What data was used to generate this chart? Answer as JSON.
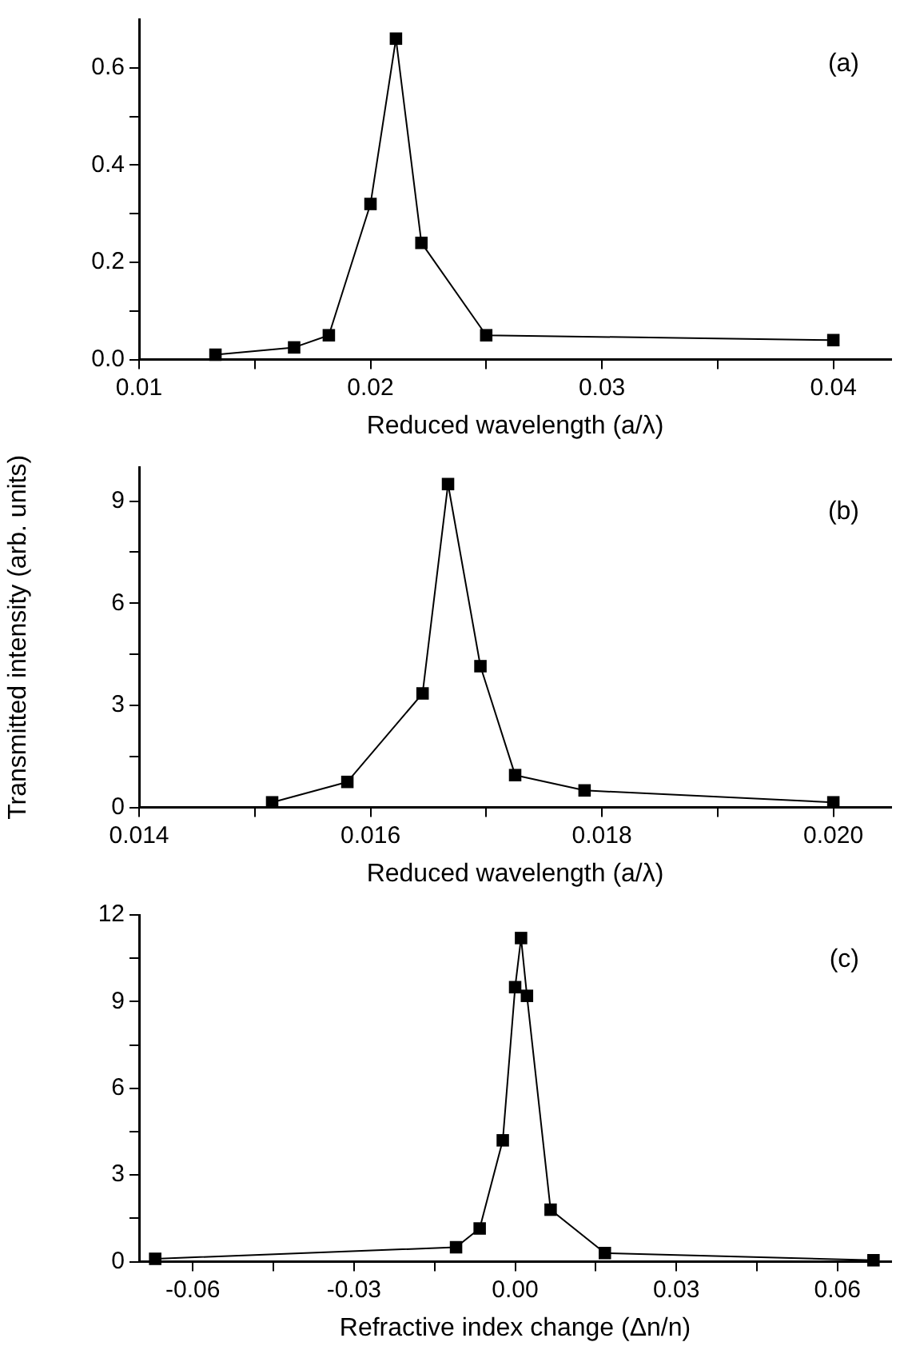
{
  "chart_data": [
    {
      "type": "line",
      "xlabel": "Reduced wavelength (a/λ)",
      "annotations": [
        "(a)"
      ],
      "marker": "square",
      "line_style": "solid",
      "grid": false,
      "legend": false,
      "x": [
        0.0133,
        0.0167,
        0.0182,
        0.02,
        0.0211,
        0.0222,
        0.025,
        0.04
      ],
      "series": [
        {
          "color": "#000000",
          "values": [
            0.01,
            0.025,
            0.05,
            0.32,
            0.66,
            0.24,
            0.05,
            0.04
          ]
        }
      ],
      "xlim": [
        0.01,
        0.0425
      ],
      "xticks": [
        0.01,
        {
          "value": 0.015,
          "label": null
        },
        0.02,
        {
          "value": 0.025,
          "label": null
        },
        0.03,
        {
          "value": 0.035,
          "label": null
        },
        0.04
      ],
      "ylim": [
        0,
        0.7
      ],
      "yticks": [
        {
          "value": 0,
          "label": "0.0"
        },
        {
          "value": 0.1,
          "label": null
        },
        0.2,
        {
          "value": 0.3,
          "label": null
        },
        0.4,
        {
          "value": 0.5,
          "label": null
        },
        0.6
      ]
    },
    {
      "type": "line",
      "xlabel": "Reduced wavelength (a/λ)",
      "ylabel": "Transmitted intensity (arb. units)",
      "annotations": [
        "(b)"
      ],
      "marker": "square",
      "line_style": "solid",
      "grid": false,
      "legend": false,
      "x": [
        0.01515,
        0.0158,
        0.01645,
        0.01667,
        0.01695,
        0.01725,
        0.01785,
        0.02
      ],
      "series": [
        {
          "color": "#000000",
          "values": [
            0.15,
            0.75,
            3.35,
            9.5,
            4.15,
            0.95,
            0.5,
            0.15
          ]
        }
      ],
      "xlim": [
        0.014,
        0.0205
      ],
      "xticks": [
        0.014,
        {
          "value": 0.015,
          "label": null
        },
        0.016,
        {
          "value": 0.017,
          "label": null
        },
        0.018,
        {
          "value": 0.019,
          "label": null
        },
        {
          "value": 0.02,
          "label": "0.020"
        }
      ],
      "ylim": [
        0,
        10
      ],
      "yticks": [
        0,
        {
          "value": 1.5,
          "label": null
        },
        3,
        {
          "value": 4.5,
          "label": null
        },
        6,
        {
          "value": 7.5,
          "label": null
        },
        9
      ]
    },
    {
      "type": "line",
      "xlabel": "Refractive index change (Δn/n)",
      "annotations": [
        "(c)"
      ],
      "marker": "square",
      "line_style": "solid",
      "grid": false,
      "legend": false,
      "x": [
        -0.067,
        -0.011,
        -0.0066,
        -0.0023,
        0.0,
        0.0011,
        0.0022,
        0.0066,
        0.0167,
        0.0667
      ],
      "series": [
        {
          "color": "#000000",
          "values": [
            0.1,
            0.5,
            1.15,
            4.2,
            9.5,
            11.2,
            9.2,
            1.8,
            0.3,
            0.05
          ]
        }
      ],
      "xlim": [
        -0.07,
        0.07
      ],
      "xticks": [
        -0.06,
        {
          "value": -0.045,
          "label": null
        },
        -0.03,
        {
          "value": -0.015,
          "label": null
        },
        {
          "value": 0,
          "label": "0.00"
        },
        {
          "value": 0.015,
          "label": null
        },
        0.03,
        {
          "value": 0.045,
          "label": null
        },
        0.06
      ],
      "ylim": [
        0,
        12
      ],
      "yticks": [
        0,
        {
          "value": 1.5,
          "label": null
        },
        3,
        {
          "value": 4.5,
          "label": null
        },
        6,
        {
          "value": 7.5,
          "label": null
        },
        9,
        {
          "value": 10.5,
          "label": null
        },
        12
      ]
    }
  ]
}
